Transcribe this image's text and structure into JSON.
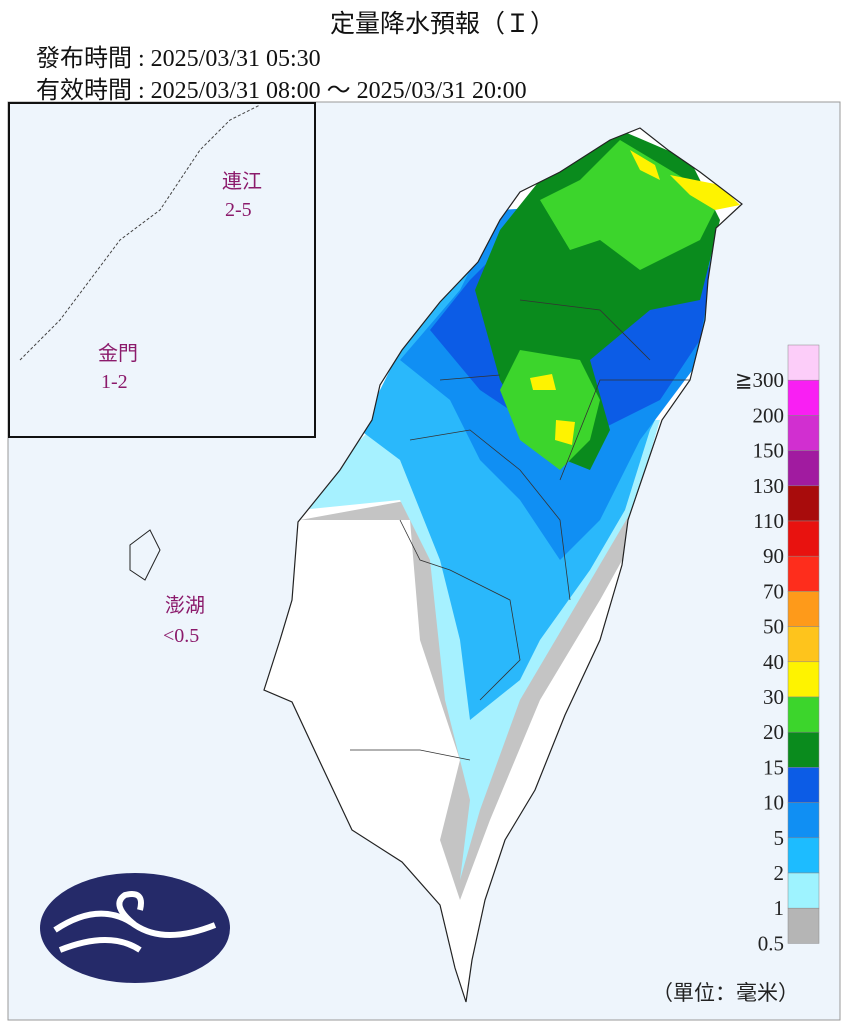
{
  "header": {
    "title": "定量降水預報（Ｉ）",
    "issued": "發布時間 : 2025/03/31 05:30",
    "valid": "有效時間 : 2025/03/31 08:00 ～ 2025/03/31 20:00"
  },
  "map": {
    "inset_labels": [
      {
        "name": "連江",
        "value": "2-5"
      },
      {
        "name": "金門",
        "value": "1-2"
      }
    ],
    "penghu": {
      "name": "澎湖",
      "value": "<0.5"
    },
    "unit": "（單位：毫米）"
  },
  "legend": {
    "labels": [
      "≧300",
      "200",
      "150",
      "130",
      "110",
      "90",
      "70",
      "50",
      "40",
      "30",
      "20",
      "15",
      "10",
      "5",
      "2",
      "1",
      "0.5"
    ],
    "colors": [
      "#fccdf9",
      "#f91ff3",
      "#d12fd0",
      "#a11ba0",
      "#a80c0c",
      "#e8120f",
      "#fe2d1c",
      "#fe9a1a",
      "#fec41c",
      "#fef300",
      "#3cd52c",
      "#0a8b1d",
      "#0c5ce6",
      "#108ff3",
      "#1dbcff",
      "#9ef3ff",
      "#b5b5b5"
    ]
  }
}
